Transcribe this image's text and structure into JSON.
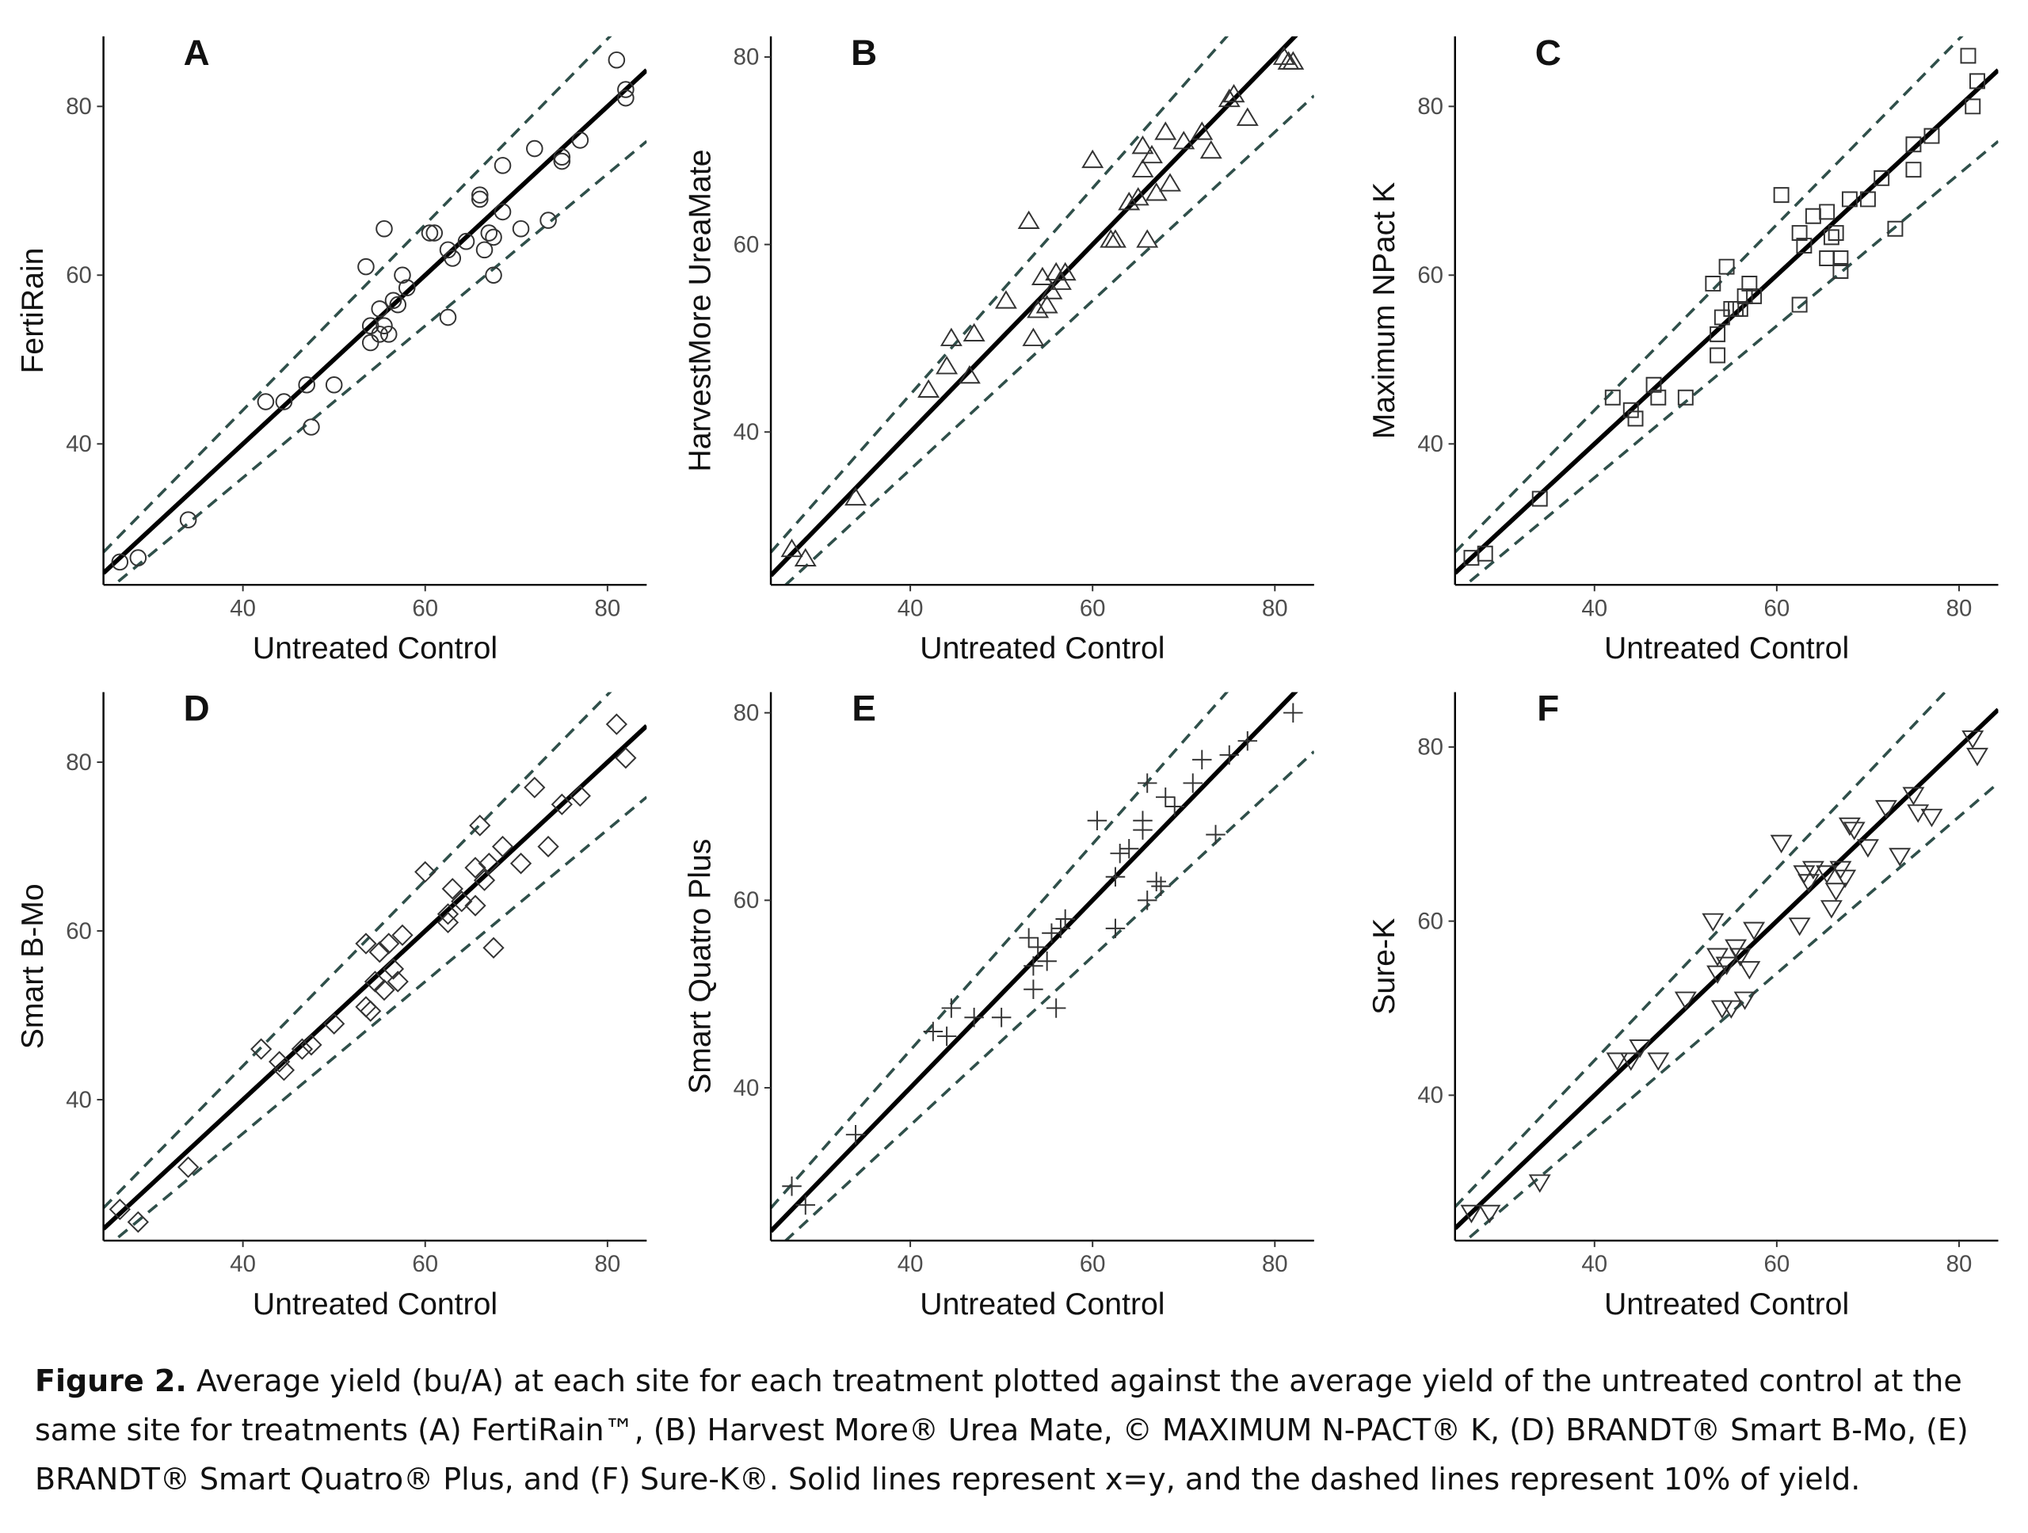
{
  "chart_data": [
    {
      "type": "scatter",
      "title": "A",
      "xlabel": "Untreated Control",
      "ylabel": "FertiRain",
      "marker": "circle",
      "color": "#333333",
      "x": [
        26.5,
        28.5,
        34,
        42.5,
        44.5,
        47,
        47.5,
        50,
        53.5,
        54,
        54,
        55,
        55,
        55.5,
        55.5,
        56,
        56.5,
        57,
        57.5,
        58,
        60.5,
        61,
        62.5,
        62.5,
        63,
        64.5,
        66,
        66,
        66.5,
        67,
        67.5,
        67.5,
        68.5,
        68.5,
        70.5,
        72,
        73.5,
        75,
        75,
        77,
        81,
        82,
        82
      ],
      "values": [
        26,
        26.5,
        31,
        45,
        45,
        47,
        42,
        47,
        61,
        52,
        54,
        56,
        53,
        54,
        65.5,
        53,
        57,
        56.5,
        60,
        58.5,
        65,
        65,
        55,
        63,
        62,
        64,
        69,
        69.5,
        63,
        65,
        64.5,
        60,
        67.5,
        73,
        65.5,
        75,
        66.5,
        74,
        73.5,
        76,
        85.5,
        82,
        81
      ],
      "xlim": [
        24.7,
        84.3
      ],
      "ylim": [
        23.3,
        88.3
      ],
      "xticks": [
        40,
        60,
        80
      ],
      "yticks": [
        40,
        60,
        80
      ],
      "ref_lines": [
        {
          "slope": 1,
          "style": "solid",
          "color": "#000000"
        },
        {
          "slope": 1.1,
          "style": "dashed",
          "color": "#2f4f4a"
        },
        {
          "slope": 0.9,
          "style": "dashed",
          "color": "#2f4f4a"
        }
      ]
    },
    {
      "type": "scatter",
      "title": "B",
      "xlabel": "Untreated Control",
      "ylabel": "HarvestMore UreaMate",
      "marker": "triangle",
      "color": "#333333",
      "x": [
        27,
        28.5,
        34,
        42,
        44,
        44.5,
        46.5,
        47,
        50.5,
        53,
        53.5,
        54,
        54.5,
        55,
        55.5,
        56,
        56.5,
        57,
        60,
        62,
        62.5,
        64,
        65,
        65.5,
        65.5,
        66,
        66.5,
        67,
        68,
        68.5,
        70,
        72,
        73,
        75,
        75.5,
        77,
        81,
        81.5,
        82
      ],
      "values": [
        27.5,
        26.5,
        33,
        44.5,
        47,
        50,
        46,
        50.5,
        54,
        62.5,
        50,
        53,
        56.5,
        53.5,
        55,
        57,
        56,
        57,
        69,
        60.5,
        60.5,
        64.5,
        65,
        70.5,
        68,
        60.5,
        69.5,
        65.5,
        72,
        66.5,
        71,
        72,
        70,
        75.5,
        76,
        73.5,
        80,
        79.5,
        79.5
      ],
      "xlim": [
        24.7,
        84.3
      ],
      "ylim": [
        23.7,
        82.2
      ],
      "xticks": [
        40,
        60,
        80
      ],
      "yticks": [
        40,
        60,
        80
      ],
      "ref_lines": [
        {
          "slope": 1,
          "style": "solid",
          "color": "#000000"
        },
        {
          "slope": 1.1,
          "style": "dashed",
          "color": "#2f4f4a"
        },
        {
          "slope": 0.9,
          "style": "dashed",
          "color": "#2f4f4a"
        }
      ]
    },
    {
      "type": "scatter",
      "title": "C",
      "xlabel": "Untreated Control",
      "ylabel": "Maximum NPact K",
      "marker": "square",
      "color": "#333333",
      "x": [
        26.5,
        28,
        34,
        42,
        44,
        44.5,
        46.5,
        47,
        50,
        53,
        53.5,
        53.5,
        54,
        54.5,
        55,
        55.5,
        56,
        56.5,
        57,
        57.5,
        60.5,
        62.5,
        62.5,
        63,
        64,
        65.5,
        65.5,
        66,
        66.5,
        67,
        67,
        68,
        70,
        71.5,
        73,
        75,
        75,
        77,
        81,
        81.5,
        82
      ],
      "values": [
        26.5,
        27,
        33.5,
        45.5,
        44,
        43,
        47,
        45.5,
        45.5,
        59,
        53,
        50.5,
        55,
        61,
        56,
        56,
        56,
        57.5,
        59,
        57.5,
        69.5,
        65,
        56.5,
        63.5,
        67,
        67.5,
        62,
        64.5,
        65,
        62,
        60.5,
        69,
        69,
        71.5,
        65.5,
        75.5,
        72.5,
        76.5,
        86,
        80,
        83
      ],
      "xlim": [
        24.7,
        84.3
      ],
      "ylim": [
        23.3,
        88.3
      ],
      "xticks": [
        40,
        60,
        80
      ],
      "yticks": [
        40,
        60,
        80
      ],
      "ref_lines": [
        {
          "slope": 1,
          "style": "solid",
          "color": "#000000"
        },
        {
          "slope": 1.1,
          "style": "dashed",
          "color": "#2f4f4a"
        },
        {
          "slope": 0.9,
          "style": "dashed",
          "color": "#2f4f4a"
        }
      ]
    },
    {
      "type": "scatter",
      "title": "D",
      "xlabel": "Untreated Control",
      "ylabel": "Smart B-Mo",
      "marker": "diamond",
      "color": "#333333",
      "x": [
        26.5,
        28.5,
        34,
        42,
        44,
        44.5,
        46.5,
        47.5,
        50,
        53.5,
        53.5,
        54,
        54.5,
        55,
        55.5,
        56,
        56.5,
        57,
        57.5,
        60,
        62.5,
        62.5,
        63,
        64,
        65.5,
        65.5,
        66,
        66.5,
        67,
        67.5,
        68.5,
        70.5,
        72,
        73.5,
        75,
        77,
        81,
        82
      ],
      "values": [
        27,
        25.5,
        32,
        46,
        44.5,
        43.5,
        46,
        46.5,
        49,
        58.5,
        51,
        50.5,
        54,
        57.5,
        53,
        58.5,
        55.5,
        54,
        59.5,
        67,
        62,
        61,
        65,
        63.5,
        67.5,
        63,
        72.5,
        66,
        68,
        58,
        70,
        68,
        77,
        70,
        75,
        76,
        84.5,
        80.5
      ],
      "xlim": [
        24.7,
        84.3
      ],
      "ylim": [
        23.3,
        88.3
      ],
      "xticks": [
        40,
        60,
        80
      ],
      "yticks": [
        40,
        60,
        80
      ],
      "ref_lines": [
        {
          "slope": 1,
          "style": "solid",
          "color": "#000000"
        },
        {
          "slope": 1.1,
          "style": "dashed",
          "color": "#2f4f4a"
        },
        {
          "slope": 0.9,
          "style": "dashed",
          "color": "#2f4f4a"
        }
      ]
    },
    {
      "type": "scatter",
      "title": "E",
      "xlabel": "Untreated Control",
      "ylabel": "Smart Quatro Plus",
      "marker": "plus",
      "color": "#333333",
      "x": [
        27,
        28.5,
        34,
        42.5,
        44,
        44.5,
        47,
        50,
        53,
        53.5,
        53.5,
        54,
        55,
        55.5,
        56,
        56.5,
        57,
        60.5,
        62.5,
        62.5,
        63,
        64,
        65.5,
        65.5,
        66,
        66,
        67,
        67.5,
        68,
        69,
        71,
        72,
        73.5,
        75,
        77,
        82
      ],
      "values": [
        29.5,
        27.5,
        35,
        46,
        45.5,
        48.5,
        47.5,
        47.5,
        56,
        53,
        50.5,
        55,
        53.5,
        56.5,
        48.5,
        57,
        58,
        68.5,
        57,
        62.5,
        65,
        65.5,
        68.5,
        67.5,
        60,
        72.5,
        62,
        61.5,
        71,
        70,
        72.5,
        75,
        67,
        75.5,
        77,
        80
      ],
      "xlim": [
        24.7,
        84.3
      ],
      "ylim": [
        23.7,
        82.2
      ],
      "xticks": [
        40,
        60,
        80
      ],
      "yticks": [
        40,
        60,
        80
      ],
      "ref_lines": [
        {
          "slope": 1,
          "style": "solid",
          "color": "#000000"
        },
        {
          "slope": 1.1,
          "style": "dashed",
          "color": "#2f4f4a"
        },
        {
          "slope": 0.9,
          "style": "dashed",
          "color": "#2f4f4a"
        }
      ]
    },
    {
      "type": "scatter",
      "title": "F",
      "xlabel": "Untreated Control",
      "ylabel": "Sure-K",
      "marker": "triangle-down",
      "color": "#333333",
      "x": [
        26.5,
        28.5,
        34,
        42.5,
        44,
        45,
        47,
        50,
        53,
        53.5,
        53.5,
        54,
        54.5,
        55,
        55.5,
        56,
        56.5,
        57,
        57.5,
        60.5,
        62.5,
        63,
        63.5,
        64,
        65.5,
        66,
        66.5,
        67,
        67.5,
        68,
        68.5,
        70,
        72,
        73.5,
        75,
        75.5,
        77,
        81.5,
        82
      ],
      "values": [
        26.5,
        26.5,
        30,
        44,
        44,
        45.5,
        44,
        51,
        60,
        56,
        54,
        50,
        55,
        50,
        57,
        56,
        51,
        54.5,
        59,
        69,
        59.5,
        65.5,
        64.5,
        66,
        65.5,
        61.5,
        63.5,
        66,
        65,
        71,
        70.5,
        68.5,
        73,
        67.5,
        74.5,
        72.5,
        72,
        81,
        79
      ],
      "xlim": [
        24.7,
        84.3
      ],
      "ylim": [
        23.3,
        86.3
      ],
      "xticks": [
        40,
        60,
        80
      ],
      "yticks": [
        40,
        60,
        80
      ],
      "ref_lines": [
        {
          "slope": 1,
          "style": "solid",
          "color": "#000000"
        },
        {
          "slope": 1.1,
          "style": "dashed",
          "color": "#2f4f4a"
        },
        {
          "slope": 0.9,
          "style": "dashed",
          "color": "#2f4f4a"
        }
      ]
    }
  ],
  "caption": {
    "label": "Figure 2.",
    "text": "Average yield (bu/A) at each site for each treatment plotted against the average yield of the untreated control at the same site for treatments (A) FertiRain™, (B) Harvest More® Urea Mate, © MAXIMUM N-PACT® K, (D) BRANDT® Smart B-Mo, (E) BRANDT® Smart Quatro® Plus, and (F) Sure-K®. Solid lines represent x=y, and the dashed lines represent 10% of yield."
  }
}
